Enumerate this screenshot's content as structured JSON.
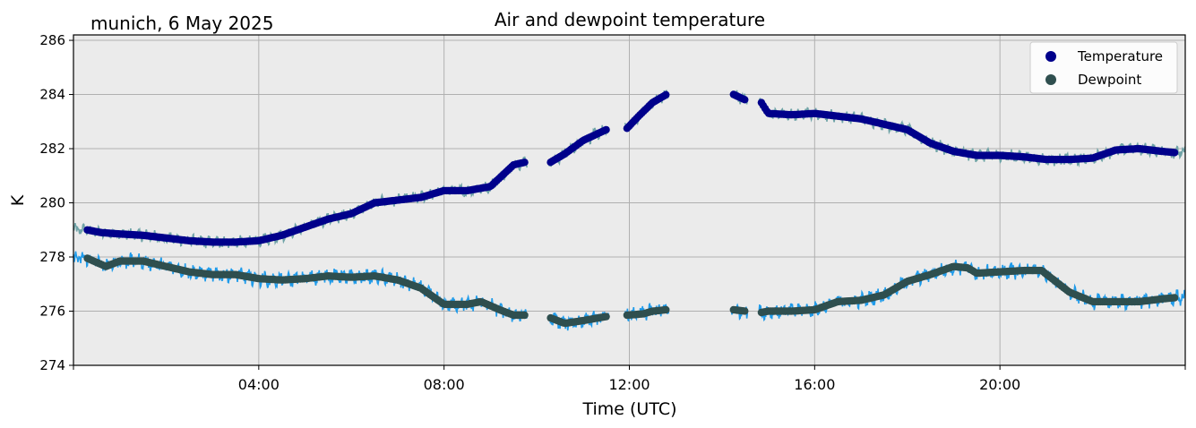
{
  "chart_data": {
    "type": "scatter",
    "title": "Air and dewpoint temperature",
    "subtitle": "munich, 6 May 2025",
    "xlabel": "Time (UTC)",
    "ylabel": "K",
    "xlim": [
      "00:00",
      "24:00"
    ],
    "ylim": [
      274,
      286.2
    ],
    "x_ticks": [
      "04:00",
      "08:00",
      "12:00",
      "16:00",
      "20:00"
    ],
    "x_tick_hours": [
      4,
      8,
      12,
      16,
      20
    ],
    "y_ticks": [
      "274",
      "276",
      "278",
      "280",
      "282",
      "284",
      "286"
    ],
    "y_tick_values": [
      274,
      276,
      278,
      280,
      282,
      284,
      286
    ],
    "grid": true,
    "legend_position": "top-right",
    "background_color": "#ebebeb",
    "series": [
      {
        "name": "Temperature",
        "marker_color": "#00008b",
        "raw_color": "#6fa3a7",
        "segments": [
          [
            [
              0.3,
              279.0
            ],
            [
              0.6,
              278.9
            ],
            [
              1.0,
              278.85
            ],
            [
              1.5,
              278.8
            ],
            [
              2.0,
              278.7
            ],
            [
              2.5,
              278.6
            ],
            [
              3.0,
              278.55
            ],
            [
              3.5,
              278.55
            ],
            [
              4.0,
              278.6
            ],
            [
              4.5,
              278.8
            ],
            [
              5.0,
              279.1
            ],
            [
              5.5,
              279.4
            ],
            [
              6.0,
              279.6
            ],
            [
              6.5,
              280.0
            ],
            [
              7.0,
              280.1
            ],
            [
              7.5,
              280.2
            ],
            [
              8.0,
              280.45
            ],
            [
              8.5,
              280.45
            ],
            [
              9.0,
              280.6
            ],
            [
              9.5,
              281.4
            ],
            [
              9.75,
              281.5
            ]
          ],
          [
            [
              10.3,
              281.5
            ],
            [
              10.6,
              281.8
            ],
            [
              11.0,
              282.3
            ],
            [
              11.5,
              282.7
            ]
          ],
          [
            [
              11.95,
              282.75
            ],
            [
              12.2,
              283.2
            ],
            [
              12.5,
              283.7
            ],
            [
              12.8,
              284.0
            ]
          ],
          [
            [
              14.25,
              284.0
            ],
            [
              14.5,
              283.8
            ]
          ],
          [
            [
              14.85,
              283.7
            ],
            [
              15.0,
              283.3
            ],
            [
              15.5,
              283.25
            ],
            [
              16.0,
              283.3
            ],
            [
              16.5,
              283.2
            ],
            [
              17.0,
              283.1
            ],
            [
              17.5,
              282.9
            ],
            [
              18.0,
              282.7
            ],
            [
              18.5,
              282.2
            ],
            [
              19.0,
              281.9
            ],
            [
              19.5,
              281.75
            ],
            [
              20.0,
              281.75
            ],
            [
              20.5,
              281.7
            ],
            [
              21.0,
              281.6
            ],
            [
              21.5,
              281.6
            ],
            [
              22.0,
              281.65
            ],
            [
              22.5,
              281.95
            ],
            [
              23.0,
              282.0
            ],
            [
              23.5,
              281.9
            ],
            [
              23.8,
              281.85
            ]
          ]
        ]
      },
      {
        "name": "Dewpoint",
        "marker_color": "#2f4f4f",
        "raw_color": "#1f9bea",
        "segments": [
          [
            [
              0.3,
              277.95
            ],
            [
              0.7,
              277.65
            ],
            [
              1.0,
              277.85
            ],
            [
              1.5,
              277.85
            ],
            [
              2.0,
              277.65
            ],
            [
              2.5,
              277.45
            ],
            [
              3.0,
              277.35
            ],
            [
              3.5,
              277.35
            ],
            [
              4.0,
              277.2
            ],
            [
              4.5,
              277.15
            ],
            [
              5.0,
              277.2
            ],
            [
              5.5,
              277.3
            ],
            [
              6.0,
              277.25
            ],
            [
              6.5,
              277.3
            ],
            [
              7.0,
              277.15
            ],
            [
              7.5,
              276.85
            ],
            [
              8.0,
              276.25
            ],
            [
              8.5,
              276.25
            ],
            [
              8.8,
              276.35
            ],
            [
              9.2,
              276.05
            ],
            [
              9.5,
              275.85
            ],
            [
              9.75,
              275.85
            ]
          ],
          [
            [
              10.3,
              275.75
            ],
            [
              10.6,
              275.55
            ],
            [
              11.0,
              275.65
            ],
            [
              11.5,
              275.8
            ]
          ],
          [
            [
              11.95,
              275.85
            ],
            [
              12.3,
              275.9
            ],
            [
              12.5,
              276.0
            ],
            [
              12.8,
              276.05
            ]
          ],
          [
            [
              14.25,
              276.05
            ],
            [
              14.5,
              276.0
            ]
          ],
          [
            [
              14.85,
              275.95
            ],
            [
              15.0,
              276.0
            ],
            [
              15.5,
              276.0
            ],
            [
              16.0,
              276.05
            ],
            [
              16.5,
              276.35
            ],
            [
              17.0,
              276.4
            ],
            [
              17.5,
              276.6
            ],
            [
              18.0,
              277.1
            ],
            [
              18.5,
              277.35
            ],
            [
              19.0,
              277.65
            ],
            [
              19.3,
              277.6
            ],
            [
              19.5,
              277.4
            ],
            [
              20.0,
              277.45
            ],
            [
              20.5,
              277.5
            ],
            [
              20.9,
              277.5
            ],
            [
              21.2,
              277.1
            ],
            [
              21.5,
              276.7
            ],
            [
              22.0,
              276.35
            ],
            [
              22.5,
              276.35
            ],
            [
              23.0,
              276.35
            ],
            [
              23.5,
              276.45
            ],
            [
              23.8,
              276.5
            ]
          ]
        ]
      }
    ]
  }
}
